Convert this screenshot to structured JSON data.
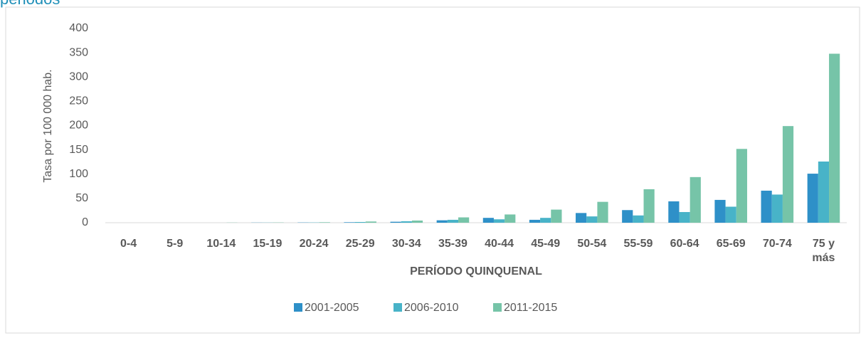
{
  "chart_data": {
    "type": "bar",
    "title": "periodos",
    "y_label": "Tasa por 100 000 hab.",
    "x_label": "PERÍODO QUINQUENAL",
    "categories": [
      "0-4",
      "5-9",
      "10-14",
      "15-19",
      "20-24",
      "25-29",
      "30-34",
      "35-39",
      "40-44",
      "45-49",
      "50-54",
      "55-59",
      "60-64",
      "65-69",
      "70-74",
      "75 y más"
    ],
    "series": [
      {
        "name": "2001-2005",
        "color": "#2e90c8",
        "values": [
          0,
          0,
          0,
          0.3,
          0.5,
          1,
          2,
          5,
          10,
          6,
          20,
          26,
          44,
          47,
          66,
          101
        ]
      },
      {
        "name": "2006-2010",
        "color": "#48b3c8",
        "values": [
          0,
          0,
          0,
          0.3,
          0.5,
          1.5,
          3,
          6,
          7,
          10,
          13,
          15,
          22,
          33,
          58,
          126
        ]
      },
      {
        "name": "2011-2015",
        "color": "#76c4a8",
        "values": [
          0,
          0,
          0.3,
          0.5,
          1,
          2.5,
          4.5,
          11,
          17,
          27,
          43,
          69,
          94,
          152,
          199,
          348
        ]
      }
    ],
    "ylim": [
      0,
      400
    ],
    "yticks": [
      0,
      50,
      100,
      150,
      200,
      250,
      300,
      350,
      400
    ],
    "grid": false,
    "legend": "bottom"
  }
}
